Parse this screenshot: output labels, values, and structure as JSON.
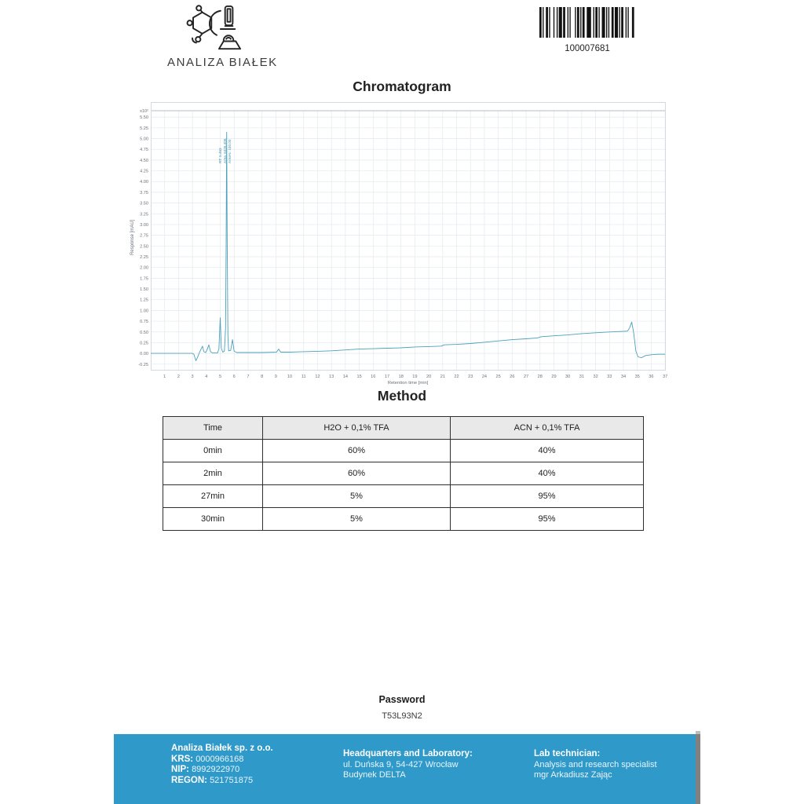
{
  "titles": {
    "chromatogram": "Chromatogram",
    "method": "Method"
  },
  "header": {
    "logo_text": "ANALIZA BIAŁEK",
    "barcode_value": "100007681"
  },
  "chart_data": {
    "type": "line",
    "title": "Chromatogram",
    "xlabel": "Retention time [min]",
    "ylabel": "Response [mAU]",
    "y_scale_label": "x10²",
    "xlim": [
      0,
      37.05
    ],
    "ylim": [
      -0.4,
      5.85
    ],
    "grid": true,
    "legend": "none",
    "line_color": "#4aa0bb",
    "grid_color": "#e2e9ee",
    "x_ticks": [
      1,
      2,
      3,
      4,
      5,
      6,
      7,
      8,
      9,
      10,
      11,
      12,
      13,
      14,
      15,
      16,
      17,
      18,
      19,
      20,
      21,
      22,
      23,
      24,
      25,
      26,
      27,
      28,
      29,
      30,
      31,
      32,
      33,
      34,
      35,
      36,
      37
    ],
    "y_ticks": [
      -0.25,
      0.0,
      0.25,
      0.5,
      0.75,
      1.0,
      1.25,
      1.5,
      1.75,
      2.0,
      2.25,
      2.5,
      2.75,
      3.0,
      3.25,
      3.5,
      3.75,
      4.0,
      4.25,
      4.5,
      4.75,
      5.0,
      5.25,
      5.5
    ],
    "peak_annotation": {
      "x": 5.463,
      "lines": [
        "RT: 5.463",
        "Area: 6426.406",
        "Area%: 100.00"
      ],
      "color": "#3d93a8"
    },
    "series": [
      {
        "name": "response",
        "points": [
          [
            0,
            0
          ],
          [
            1,
            0
          ],
          [
            2,
            0
          ],
          [
            3,
            0
          ],
          [
            3.1,
            -0.02
          ],
          [
            3.25,
            -0.17
          ],
          [
            3.38,
            -0.08
          ],
          [
            3.5,
            0.02
          ],
          [
            3.62,
            0.1
          ],
          [
            3.72,
            0.17
          ],
          [
            3.82,
            0.04
          ],
          [
            3.95,
            0.02
          ],
          [
            4.05,
            0.08
          ],
          [
            4.18,
            0.2
          ],
          [
            4.3,
            0.04
          ],
          [
            4.45,
            0.01
          ],
          [
            4.8,
            0.01
          ],
          [
            4.9,
            0.1
          ],
          [
            5.0,
            0.83
          ],
          [
            5.08,
            0.12
          ],
          [
            5.18,
            0.03
          ],
          [
            5.3,
            0.05
          ],
          [
            5.38,
            0.6
          ],
          [
            5.42,
            2.5
          ],
          [
            5.463,
            5.15
          ],
          [
            5.5,
            2.5
          ],
          [
            5.55,
            0.4
          ],
          [
            5.6,
            0.06
          ],
          [
            5.75,
            0.07
          ],
          [
            5.88,
            0.32
          ],
          [
            6.0,
            0.05
          ],
          [
            6.2,
            0.02
          ],
          [
            7,
            0.02
          ],
          [
            8,
            0.02
          ],
          [
            9.05,
            0.03
          ],
          [
            9.2,
            0.1
          ],
          [
            9.35,
            0.03
          ],
          [
            10,
            0.03
          ],
          [
            11,
            0.04
          ],
          [
            12,
            0.05
          ],
          [
            13,
            0.06
          ],
          [
            14,
            0.08
          ],
          [
            15,
            0.1
          ],
          [
            16,
            0.11
          ],
          [
            17,
            0.12
          ],
          [
            18,
            0.13
          ],
          [
            19,
            0.15
          ],
          [
            20,
            0.16
          ],
          [
            20.9,
            0.17
          ],
          [
            21.1,
            0.2
          ],
          [
            22,
            0.21
          ],
          [
            23,
            0.23
          ],
          [
            24,
            0.26
          ],
          [
            25,
            0.29
          ],
          [
            26,
            0.32
          ],
          [
            27,
            0.34
          ],
          [
            27.8,
            0.36
          ],
          [
            28.1,
            0.39
          ],
          [
            29,
            0.41
          ],
          [
            30,
            0.43
          ],
          [
            31,
            0.46
          ],
          [
            32,
            0.48
          ],
          [
            33,
            0.5
          ],
          [
            33.8,
            0.51
          ],
          [
            34.3,
            0.52
          ],
          [
            34.45,
            0.6
          ],
          [
            34.6,
            0.73
          ],
          [
            34.75,
            0.45
          ],
          [
            34.9,
            0.05
          ],
          [
            35.05,
            -0.08
          ],
          [
            35.3,
            -0.1
          ],
          [
            35.6,
            -0.05
          ],
          [
            36,
            -0.03
          ],
          [
            36.5,
            -0.02
          ],
          [
            37,
            -0.02
          ]
        ]
      }
    ]
  },
  "method_table": {
    "headers": [
      "Time",
      "H2O + 0,1% TFA",
      "ACN + 0,1% TFA"
    ],
    "rows": [
      [
        "0min",
        "60%",
        "40%"
      ],
      [
        "2min",
        "60%",
        "40%"
      ],
      [
        "27min",
        "5%",
        "95%"
      ],
      [
        "30min",
        "5%",
        "95%"
      ]
    ]
  },
  "password": {
    "label": "Password",
    "value": "T53L93N2"
  },
  "footer": {
    "bg_color": "#2f99c9",
    "company": {
      "name": "Analiza Białek sp. z o.o.",
      "krs_label": "KRS:",
      "krs": "0000966168",
      "nip_label": "NIP:",
      "nip": "8992922970",
      "regon_label": "REGON:",
      "regon": "521751875"
    },
    "headquarters": {
      "title": "Headquarters and Laboratory:",
      "address_line1": "ul. Duńska 9, 54-427 Wrocław",
      "address_line2": "Budynek DELTA"
    },
    "technician": {
      "title": "Lab technician:",
      "line1": "Analysis and research specialist",
      "line2": "mgr Arkadiusz Zając"
    }
  }
}
